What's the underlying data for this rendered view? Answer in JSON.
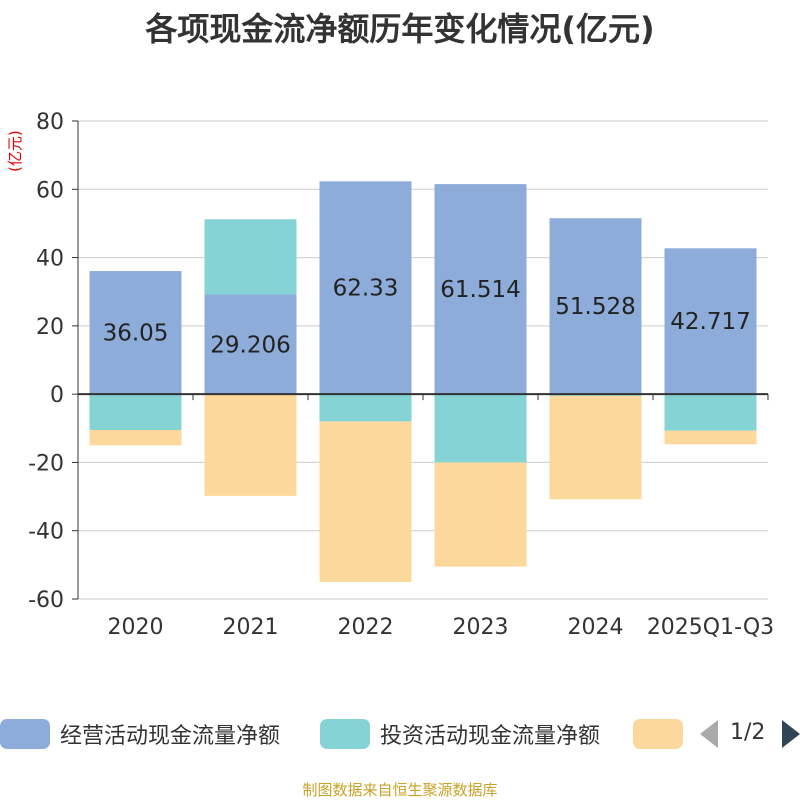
{
  "chart_data": {
    "type": "bar",
    "stacked": true,
    "title": "各项现金流净额历年变化情况(亿元)",
    "ylabel": "(亿元)",
    "ylim": [
      -60,
      80
    ],
    "yticks": [
      80,
      60,
      40,
      20,
      0,
      -20,
      -40,
      -60
    ],
    "grid": true,
    "categories": [
      "2020",
      "2021",
      "2022",
      "2023",
      "2024",
      "2025Q1-Q3"
    ],
    "series": [
      {
        "name": "经营活动现金流量净额",
        "color": "#8eacd9",
        "values": [
          36.05,
          29.206,
          62.33,
          61.514,
          51.528,
          42.717
        ],
        "labels": [
          "36.05",
          "29.206",
          "62.33",
          "61.514",
          "51.528",
          "42.717"
        ]
      },
      {
        "name": "投资活动现金流量净额",
        "color": "#86d3d6",
        "values": [
          -10.5,
          22.0,
          -8.0,
          -20.0,
          -0.5,
          -10.7
        ]
      },
      {
        "name": "",
        "color": "#fdd89c",
        "values": [
          -4.5,
          -29.8,
          -47.0,
          -30.5,
          -30.3,
          -4.0
        ]
      }
    ]
  },
  "legend": {
    "items": [
      {
        "label": "经营活动现金流量净额",
        "color": "#8eacd9"
      },
      {
        "label": "投资活动现金流量净额",
        "color": "#86d3d6"
      },
      {
        "label": "",
        "color": "#fdd89c"
      }
    ],
    "page": "1/2"
  },
  "source": "制图数据来自恒生聚源数据库"
}
